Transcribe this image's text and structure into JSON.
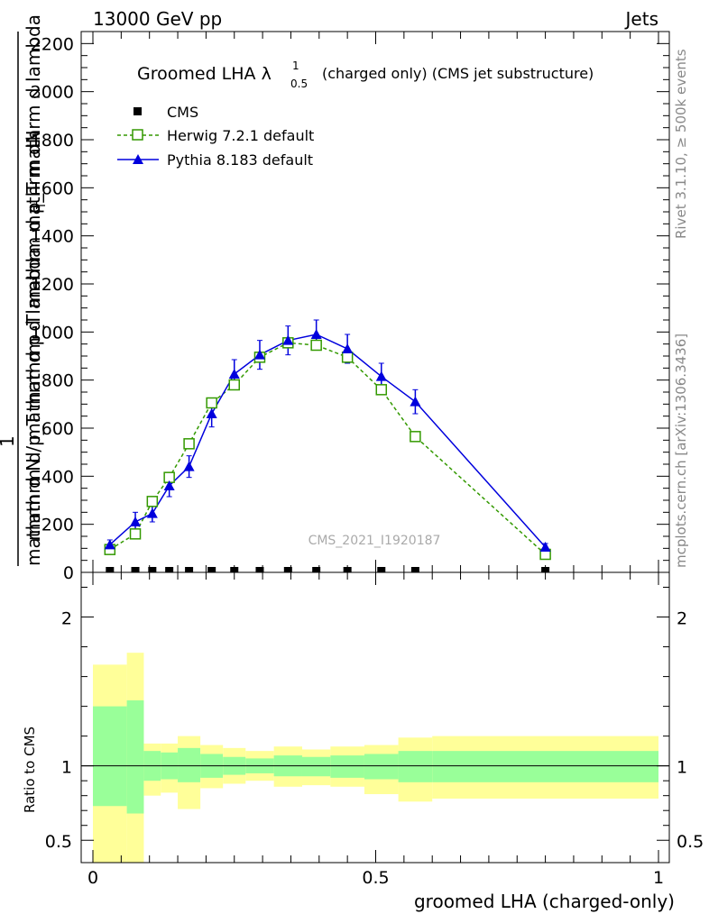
{
  "header": {
    "left": "13000 GeV pp",
    "right": "Jets"
  },
  "side": {
    "rivet": "Rivet 3.1.10, ≥ 500k events",
    "mcplots": "mcplots.cern.ch [arXiv:1306.3436]"
  },
  "watermark": "CMS_2021_I1920187",
  "chart_data": [
    {
      "type": "line",
      "title_main": "Groomed LHA λ",
      "title_sup": "1",
      "title_sub": "0.5",
      "title_rest": "(charged only) (CMS jet substructure)",
      "ylabel_top": "mathrm dN",
      "ylabel_middle": "mathrm d p_T mathrm d lambda",
      "ylabel_sub": "T",
      "ylabel_one": "1",
      "ylabel_bottom": "mathrm d N / mathrm d p_T mathrm d p_T mathrm d lambda",
      "xlim": [
        0,
        1
      ],
      "ylim": [
        0,
        2250
      ],
      "yticks": [
        0,
        200,
        400,
        600,
        800,
        1000,
        1200,
        1400,
        1600,
        1800,
        2000,
        2200
      ],
      "ytick_labels": [
        "0",
        "200",
        "400",
        "600",
        "800",
        "1000",
        "1200",
        "1400",
        "1600",
        "1800",
        "2000",
        "2200"
      ],
      "legend": [
        "CMS",
        "Herwig 7.2.1 default",
        "Pythia 8.183 default"
      ],
      "colors": {
        "cms": "#000000",
        "herwig": "#339900",
        "pythia": "#0000dd"
      },
      "bins": [
        0.0,
        0.06,
        0.09,
        0.12,
        0.15,
        0.19,
        0.23,
        0.27,
        0.32,
        0.37,
        0.42,
        0.48,
        0.54,
        0.6,
        1.0
      ],
      "x": [
        0.03,
        0.075,
        0.105,
        0.135,
        0.17,
        0.21,
        0.25,
        0.295,
        0.345,
        0.395,
        0.45,
        0.51,
        0.57,
        0.8
      ],
      "series": [
        {
          "name": "CMS",
          "values": [
            0,
            0,
            0,
            0,
            0,
            0,
            0,
            0,
            0,
            0,
            0,
            0,
            0,
            0
          ]
        },
        {
          "name": "Herwig 7.2.1 default",
          "values": [
            95,
            160,
            295,
            395,
            535,
            705,
            780,
            895,
            955,
            945,
            895,
            760,
            565,
            75
          ]
        },
        {
          "name": "Pythia 8.183 default",
          "values": [
            115,
            210,
            245,
            360,
            440,
            660,
            825,
            905,
            965,
            990,
            930,
            815,
            710,
            105
          ],
          "errors": [
            20,
            40,
            35,
            45,
            45,
            55,
            60,
            60,
            60,
            60,
            60,
            55,
            50,
            15
          ]
        }
      ]
    },
    {
      "type": "area",
      "ylabel": "Ratio to CMS",
      "xlabel": "groomed LHA (charged-only)",
      "xlim": [
        0,
        1
      ],
      "ylim": [
        0.35,
        2.3
      ],
      "xtick_labels": [
        "0",
        "0.5",
        "1"
      ],
      "ytick_labels": [
        "0.5",
        "1",
        "2"
      ],
      "bins": [
        0.0,
        0.06,
        0.09,
        0.12,
        0.15,
        0.19,
        0.23,
        0.27,
        0.32,
        0.37,
        0.42,
        0.48,
        0.54,
        0.6,
        1.0
      ],
      "band_outer_low": [
        0.35,
        0.35,
        0.8,
        0.82,
        0.71,
        0.85,
        0.88,
        0.9,
        0.86,
        0.87,
        0.86,
        0.81,
        0.76,
        0.78
      ],
      "band_outer_high": [
        1.68,
        1.76,
        1.15,
        1.15,
        1.2,
        1.14,
        1.12,
        1.1,
        1.13,
        1.11,
        1.13,
        1.14,
        1.19,
        1.2
      ],
      "band_inner_low": [
        0.73,
        0.68,
        0.9,
        0.91,
        0.89,
        0.92,
        0.94,
        0.95,
        0.93,
        0.93,
        0.92,
        0.91,
        0.89,
        0.89
      ],
      "band_inner_high": [
        1.4,
        1.44,
        1.1,
        1.09,
        1.12,
        1.08,
        1.06,
        1.05,
        1.07,
        1.06,
        1.07,
        1.08,
        1.1,
        1.1
      ],
      "colors": {
        "outer": "#ffff99",
        "inner": "#99ff99"
      }
    }
  ]
}
